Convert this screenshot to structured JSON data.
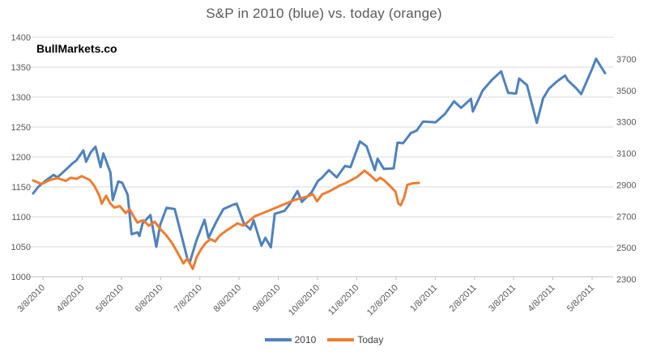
{
  "watermark": "BullMarkets.co",
  "legend": [
    {
      "label": "2010",
      "color": "#4F81BD"
    },
    {
      "label": "Today",
      "color": "#ED7D31"
    }
  ],
  "chart_data": {
    "type": "line",
    "title": "S&P in 2010 (blue) vs. today (orange)",
    "xlabel": "",
    "ylabel": "",
    "grid": true,
    "legend_position": "bottom",
    "x_axis": {
      "tick_labels": [
        "3/8/2010",
        "4/8/2010",
        "5/8/2010",
        "6/8/2010",
        "7/8/2010",
        "8/8/2010",
        "9/8/2010",
        "10/8/2010",
        "11/8/2010",
        "12/8/2010",
        "1/8/2011",
        "2/8/2011",
        "3/8/2011",
        "4/8/2011",
        "5/8/2011"
      ]
    },
    "left_axis": {
      "min": 1000,
      "max": 1400,
      "ticks": [
        1400,
        1350,
        1300,
        1250,
        1200,
        1150,
        1100,
        1050,
        1000
      ]
    },
    "right_axis": {
      "min": 2300,
      "max": 3700,
      "ticks": [
        3700,
        3500,
        3300,
        3100,
        2900,
        2700,
        2500,
        2300
      ]
    },
    "series": [
      {
        "name": "2010",
        "axis": "left",
        "color": "#4F81BD",
        "points": [
          [
            -0.25,
            1139
          ],
          [
            -0.12,
            1150
          ],
          [
            0.06,
            1160
          ],
          [
            0.27,
            1170
          ],
          [
            0.37,
            1166
          ],
          [
            0.57,
            1178
          ],
          [
            0.75,
            1189
          ],
          [
            0.85,
            1194
          ],
          [
            1.03,
            1211
          ],
          [
            1.1,
            1192
          ],
          [
            1.22,
            1208
          ],
          [
            1.34,
            1217
          ],
          [
            1.47,
            1183
          ],
          [
            1.54,
            1206
          ],
          [
            1.72,
            1174
          ],
          [
            1.78,
            1128
          ],
          [
            1.92,
            1159
          ],
          [
            2.02,
            1157
          ],
          [
            2.16,
            1137
          ],
          [
            2.26,
            1071
          ],
          [
            2.41,
            1074
          ],
          [
            2.46,
            1068
          ],
          [
            2.54,
            1089
          ],
          [
            2.74,
            1103
          ],
          [
            2.89,
            1050
          ],
          [
            2.99,
            1087
          ],
          [
            3.15,
            1115
          ],
          [
            3.36,
            1113
          ],
          [
            3.5,
            1077
          ],
          [
            3.68,
            1031
          ],
          [
            3.74,
            1023
          ],
          [
            3.91,
            1060
          ],
          [
            4.12,
            1095
          ],
          [
            4.22,
            1065
          ],
          [
            4.43,
            1093
          ],
          [
            4.6,
            1113
          ],
          [
            4.84,
            1120
          ],
          [
            4.94,
            1122
          ],
          [
            5.12,
            1089
          ],
          [
            5.29,
            1079
          ],
          [
            5.37,
            1094
          ],
          [
            5.57,
            1052
          ],
          [
            5.67,
            1065
          ],
          [
            5.81,
            1049
          ],
          [
            5.91,
            1105
          ],
          [
            6.16,
            1110
          ],
          [
            6.29,
            1121
          ],
          [
            6.49,
            1143
          ],
          [
            6.6,
            1125
          ],
          [
            6.85,
            1141
          ],
          [
            7.01,
            1160
          ],
          [
            7.11,
            1165
          ],
          [
            7.29,
            1178
          ],
          [
            7.49,
            1166
          ],
          [
            7.7,
            1185
          ],
          [
            7.84,
            1183
          ],
          [
            8.08,
            1226
          ],
          [
            8.25,
            1218
          ],
          [
            8.46,
            1178
          ],
          [
            8.53,
            1197
          ],
          [
            8.69,
            1180
          ],
          [
            8.94,
            1181
          ],
          [
            9.04,
            1224
          ],
          [
            9.18,
            1223
          ],
          [
            9.38,
            1240
          ],
          [
            9.53,
            1244
          ],
          [
            9.69,
            1259
          ],
          [
            10.01,
            1258
          ],
          [
            10.25,
            1272
          ],
          [
            10.48,
            1293
          ],
          [
            10.66,
            1282
          ],
          [
            10.91,
            1297
          ],
          [
            10.96,
            1276
          ],
          [
            11.21,
            1311
          ],
          [
            11.45,
            1329
          ],
          [
            11.68,
            1343
          ],
          [
            11.86,
            1307
          ],
          [
            12.06,
            1306
          ],
          [
            12.14,
            1331
          ],
          [
            12.34,
            1320
          ],
          [
            12.59,
            1257
          ],
          [
            12.75,
            1298
          ],
          [
            12.9,
            1314
          ],
          [
            13.1,
            1326
          ],
          [
            13.31,
            1336
          ],
          [
            13.38,
            1328
          ],
          [
            13.59,
            1315
          ],
          [
            13.72,
            1305
          ],
          [
            14.0,
            1347
          ],
          [
            14.1,
            1364
          ],
          [
            14.26,
            1347
          ],
          [
            14.33,
            1340
          ]
        ]
      },
      {
        "name": "Today",
        "axis": "right",
        "color": "#ED7D31",
        "points": [
          [
            -0.25,
            2928
          ],
          [
            -0.04,
            2905
          ],
          [
            0.17,
            2930
          ],
          [
            0.37,
            2943
          ],
          [
            0.58,
            2925
          ],
          [
            0.71,
            2945
          ],
          [
            0.86,
            2938
          ],
          [
            0.99,
            2955
          ],
          [
            1.2,
            2930
          ],
          [
            1.32,
            2890
          ],
          [
            1.44,
            2830
          ],
          [
            1.5,
            2780
          ],
          [
            1.61,
            2830
          ],
          [
            1.72,
            2780
          ],
          [
            1.82,
            2755
          ],
          [
            1.96,
            2765
          ],
          [
            2.11,
            2720
          ],
          [
            2.21,
            2745
          ],
          [
            2.31,
            2700
          ],
          [
            2.41,
            2660
          ],
          [
            2.55,
            2675
          ],
          [
            2.7,
            2640
          ],
          [
            2.85,
            2665
          ],
          [
            2.99,
            2620
          ],
          [
            3.14,
            2580
          ],
          [
            3.29,
            2530
          ],
          [
            3.44,
            2465
          ],
          [
            3.58,
            2400
          ],
          [
            3.68,
            2430
          ],
          [
            3.82,
            2365
          ],
          [
            3.92,
            2440
          ],
          [
            4.03,
            2490
          ],
          [
            4.15,
            2530
          ],
          [
            4.27,
            2555
          ],
          [
            4.39,
            2540
          ],
          [
            4.52,
            2580
          ],
          [
            4.67,
            2608
          ],
          [
            4.81,
            2630
          ],
          [
            4.96,
            2655
          ],
          [
            5.11,
            2640
          ],
          [
            5.26,
            2670
          ],
          [
            5.4,
            2700
          ],
          [
            5.55,
            2715
          ],
          [
            5.7,
            2730
          ],
          [
            5.85,
            2745
          ],
          [
            5.99,
            2760
          ],
          [
            6.14,
            2775
          ],
          [
            6.29,
            2790
          ],
          [
            6.43,
            2805
          ],
          [
            6.58,
            2815
          ],
          [
            6.73,
            2825
          ],
          [
            6.88,
            2840
          ],
          [
            6.99,
            2795
          ],
          [
            7.12,
            2840
          ],
          [
            7.27,
            2855
          ],
          [
            7.42,
            2875
          ],
          [
            7.56,
            2895
          ],
          [
            7.71,
            2910
          ],
          [
            7.86,
            2930
          ],
          [
            8.01,
            2950
          ],
          [
            8.2,
            2990
          ],
          [
            8.35,
            2960
          ],
          [
            8.5,
            2925
          ],
          [
            8.6,
            2945
          ],
          [
            8.69,
            2930
          ],
          [
            8.84,
            2895
          ],
          [
            8.99,
            2855
          ],
          [
            9.06,
            2780
          ],
          [
            9.12,
            2770
          ],
          [
            9.21,
            2820
          ],
          [
            9.29,
            2900
          ],
          [
            9.43,
            2910
          ],
          [
            9.58,
            2912
          ]
        ]
      }
    ]
  }
}
